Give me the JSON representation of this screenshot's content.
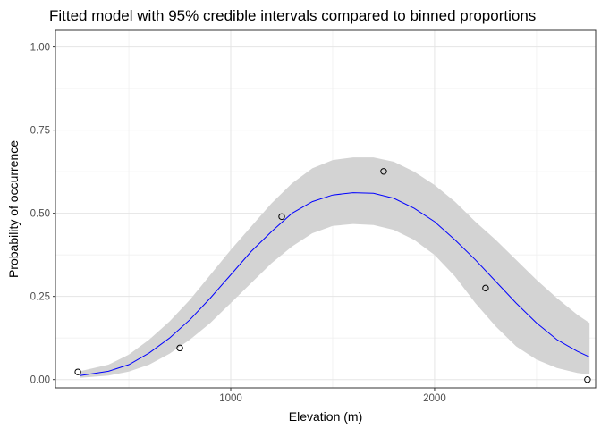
{
  "chart_data": {
    "type": "line",
    "title": "Fitted model with 95% credible intervals compared to binned proportions",
    "xlabel": "Elevation (m)",
    "ylabel": "Probability of occurrence",
    "xlim": [
      140,
      2790
    ],
    "ylim": [
      -0.025,
      1.05
    ],
    "x_ticks": [
      {
        "value": 1000,
        "label": "1000"
      },
      {
        "value": 2000,
        "label": "2000"
      }
    ],
    "x_minor_ticks": [
      500,
      1500,
      2500
    ],
    "y_ticks": [
      {
        "value": 0.0,
        "label": "0.00"
      },
      {
        "value": 0.25,
        "label": "0.25"
      },
      {
        "value": 0.5,
        "label": "0.50"
      },
      {
        "value": 0.75,
        "label": "0.75"
      },
      {
        "value": 1.0,
        "label": "1.00"
      }
    ],
    "grid": true,
    "series": [
      {
        "kind": "fitted_line",
        "color": "#0000ff",
        "x": [
          260,
          400,
          500,
          600,
          700,
          800,
          900,
          1000,
          1100,
          1200,
          1300,
          1400,
          1500,
          1600,
          1700,
          1800,
          1900,
          2000,
          2100,
          2200,
          2300,
          2400,
          2500,
          2600,
          2700,
          2760
        ],
        "y": [
          0.012,
          0.025,
          0.045,
          0.08,
          0.125,
          0.18,
          0.245,
          0.315,
          0.385,
          0.445,
          0.5,
          0.535,
          0.555,
          0.562,
          0.56,
          0.545,
          0.515,
          0.475,
          0.42,
          0.36,
          0.295,
          0.23,
          0.17,
          0.12,
          0.085,
          0.068
        ]
      },
      {
        "kind": "credible_interval",
        "color": "#d3d3d3",
        "x": [
          260,
          400,
          500,
          600,
          700,
          800,
          900,
          1000,
          1100,
          1200,
          1300,
          1400,
          1500,
          1600,
          1700,
          1800,
          1900,
          2000,
          2100,
          2200,
          2300,
          2400,
          2500,
          2600,
          2700,
          2760
        ],
        "lower": [
          0.005,
          0.012,
          0.024,
          0.045,
          0.078,
          0.12,
          0.17,
          0.23,
          0.29,
          0.35,
          0.4,
          0.44,
          0.462,
          0.468,
          0.465,
          0.45,
          0.42,
          0.375,
          0.31,
          0.23,
          0.16,
          0.1,
          0.06,
          0.035,
          0.02,
          0.015
        ],
        "upper": [
          0.025,
          0.045,
          0.075,
          0.12,
          0.175,
          0.24,
          0.315,
          0.39,
          0.46,
          0.53,
          0.59,
          0.635,
          0.66,
          0.668,
          0.668,
          0.655,
          0.625,
          0.585,
          0.535,
          0.475,
          0.42,
          0.36,
          0.3,
          0.245,
          0.195,
          0.17
        ]
      },
      {
        "kind": "binned_proportions",
        "color": "#000000",
        "x": [
          250,
          750,
          1250,
          1750,
          2250,
          2750
        ],
        "y": [
          0.023,
          0.095,
          0.49,
          0.626,
          0.275,
          0.0
        ]
      }
    ]
  }
}
